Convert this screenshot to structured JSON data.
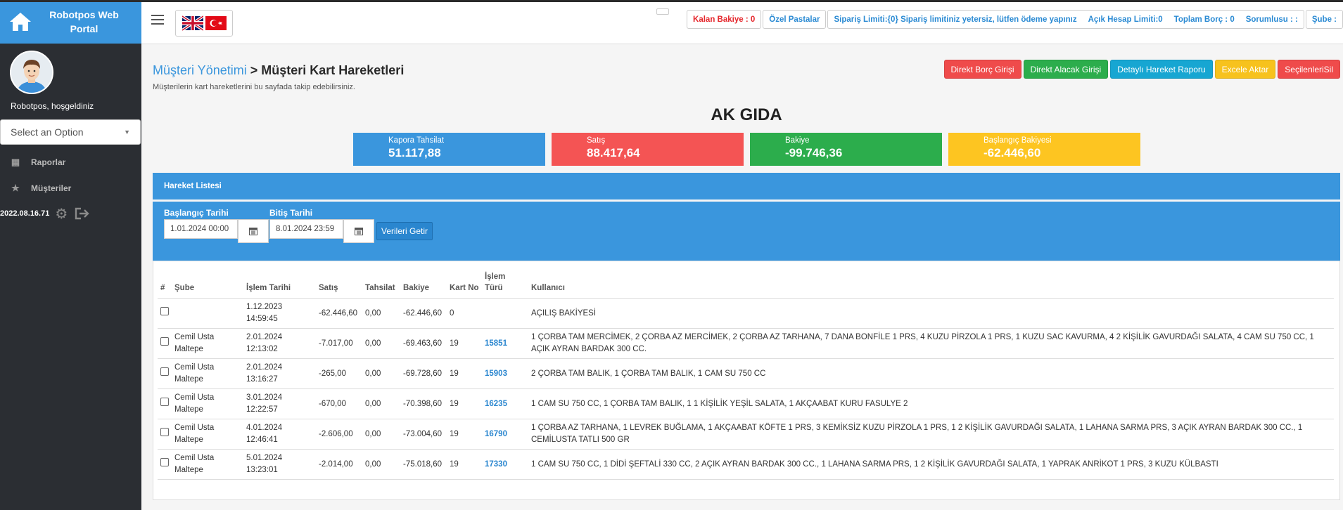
{
  "brand": {
    "title_line1": "Robotpos Web",
    "title_line2": "Portal"
  },
  "sidebar": {
    "welcome": "Robotpos, hoşgeldiniz",
    "select_placeholder": "Select an Option",
    "items": [
      {
        "label": "Raporlar",
        "icon": "table-icon"
      },
      {
        "label": "Müşteriler",
        "icon": "star-icon"
      }
    ],
    "version": "2022.08.16.71"
  },
  "topbar": {
    "remaining_balance": "Kalan Bakiye : 0",
    "special_cakes": "Özel Pastalar",
    "order_limit": "Sipariş Limiti:{0} Sipariş limitiniz yetersiz, lütfen ödeme yapınız",
    "open_account_limit": "Açık Hesap Limiti:0",
    "total_debt": "Toplam Borç : 0",
    "responsible": "Sorumlusu : :",
    "branch": "Şube :"
  },
  "page": {
    "crumb": "Müşteri Yönetimi",
    "separator": " > ",
    "title": "Müşteri Kart Hareketleri",
    "subtitle": "Müşterilerin kart hareketlerini bu sayfada takip edebilirsiniz.",
    "company": "AK GIDA"
  },
  "actions": [
    {
      "label": "Direkt Borç Girişi",
      "color": "#ef4b4b"
    },
    {
      "label": "Direkt Alacak Girişi",
      "color": "#2cad4c"
    },
    {
      "label": "Detaylı Hareket Raporu",
      "color": "#17a6d2"
    },
    {
      "label": "Excele Aktar",
      "color": "#f7c21d"
    },
    {
      "label": "SeçilenleriSil",
      "color": "#ef4b4b"
    }
  ],
  "summary": [
    {
      "label": "Kapora Tahsilat",
      "value": "51.117,88",
      "color": "#3a96dd"
    },
    {
      "label": "Satış",
      "value": "88.417,64",
      "color": "#f45454"
    },
    {
      "label": "Bakiye",
      "value": "-99.746,36",
      "color": "#2cad4c"
    },
    {
      "label": "Başlangıç Bakiyesi",
      "value": "-62.446,60",
      "color": "#fdc521"
    }
  ],
  "panel": {
    "title": "Hareket Listesi"
  },
  "filter": {
    "start_label": "Başlangıç Tarihi",
    "start_value": "1.01.2024 00:00",
    "end_label": "Bitiş Tarihi",
    "end_value": "8.01.2024 23:59",
    "fetch_label": "Verileri Getir"
  },
  "table": {
    "headers": [
      "#",
      "Şube",
      "İşlem Tarihi",
      "Satış",
      "Tahsilat",
      "Bakiye",
      "Kart No",
      "İşlem Türü",
      "Kullanıcı"
    ],
    "rows": [
      {
        "sube": "",
        "tarih": "1.12.2023 14:59:45",
        "satis": "-62.446,60",
        "tahsilat": "0,00",
        "bakiye": "-62.446,60",
        "kart": "0",
        "tur": "",
        "kullanici": "AÇILIŞ BAKİYESİ"
      },
      {
        "sube": "Cemil Usta Maltepe",
        "tarih": "2.01.2024 12:13:02",
        "satis": "-7.017,00",
        "tahsilat": "0,00",
        "bakiye": "-69.463,60",
        "kart": "19",
        "tur": "15851",
        "kullanici": "1 ÇORBA TAM MERCİMEK, 2 ÇORBA AZ MERCİMEK, 2 ÇORBA AZ TARHANA, 7 DANA BONFİLE 1 PRS, 4 KUZU PİRZOLA 1 PRS, 1 KUZU SAC KAVURMA, 4 2 KİŞİLİK GAVURDAĞI SALATA, 4 CAM SU 750 CC, 1 AÇIK AYRAN BARDAK 300 CC."
      },
      {
        "sube": "Cemil Usta Maltepe",
        "tarih": "2.01.2024 13:16:27",
        "satis": "-265,00",
        "tahsilat": "0,00",
        "bakiye": "-69.728,60",
        "kart": "19",
        "tur": "15903",
        "kullanici": "2 ÇORBA TAM BALIK, 1 ÇORBA TAM BALIK, 1 CAM SU 750 CC"
      },
      {
        "sube": "Cemil Usta Maltepe",
        "tarih": "3.01.2024 12:22:57",
        "satis": "-670,00",
        "tahsilat": "0,00",
        "bakiye": "-70.398,60",
        "kart": "19",
        "tur": "16235",
        "kullanici": "1 CAM SU 750 CC, 1 ÇORBA TAM BALIK, 1 1 KİŞİLİK YEŞİL SALATA, 1 AKÇAABAT KURU FASULYE 2"
      },
      {
        "sube": "Cemil Usta Maltepe",
        "tarih": "4.01.2024 12:46:41",
        "satis": "-2.606,00",
        "tahsilat": "0,00",
        "bakiye": "-73.004,60",
        "kart": "19",
        "tur": "16790",
        "kullanici": "1 ÇORBA AZ TARHANA, 1 LEVREK BUĞLAMA, 1 AKÇAABAT KÖFTE 1 PRS, 3 KEMİKSİZ KUZU PİRZOLA 1 PRS, 1 2 KİŞİLİK GAVURDAĞI SALATA, 1 LAHANA SARMA PRS, 3 AÇIK AYRAN BARDAK 300 CC., 1 CEMİLUSTA TATLI 500 GR"
      },
      {
        "sube": "Cemil Usta Maltepe",
        "tarih": "5.01.2024 13:23:01",
        "satis": "-2.014,00",
        "tahsilat": "0,00",
        "bakiye": "-75.018,60",
        "kart": "19",
        "tur": "17330",
        "kullanici": "1 CAM SU 750 CC, 1 DİDİ ŞEFTALİ 330 CC, 2 AÇIK AYRAN BARDAK 300 CC., 1 LAHANA SARMA PRS, 1 2 KİŞİLİK GAVURDAĞI SALATA, 1 YAPRAK ANRİKOT 1 PRS, 3 KUZU KÜLBASTI"
      }
    ]
  }
}
